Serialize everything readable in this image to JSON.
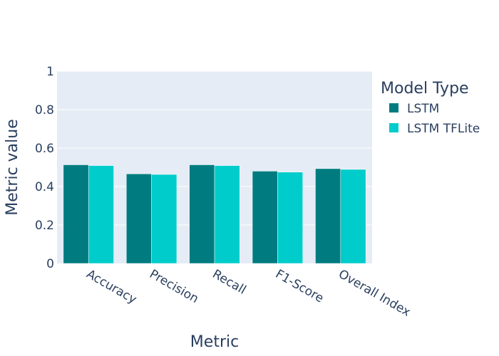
{
  "chart_data": {
    "type": "bar",
    "title": "",
    "xlabel": "Metric",
    "ylabel": "Metric value",
    "categories": [
      "Accuracy",
      "Precision",
      "Recall",
      "F1-Score",
      "Overall Index"
    ],
    "series": [
      {
        "name": "LSTM",
        "values": [
          0.513,
          0.466,
          0.513,
          0.48,
          0.493
        ],
        "color": "#007c80"
      },
      {
        "name": "LSTM TFLite",
        "values": [
          0.509,
          0.463,
          0.509,
          0.475,
          0.489
        ],
        "color": "#00cccc"
      }
    ],
    "ylim": [
      0,
      1
    ],
    "yticks": [
      0,
      0.2,
      0.4,
      0.6,
      0.8,
      1
    ],
    "ytick_labels": [
      "0",
      "0.2",
      "0.4",
      "0.6",
      "0.8",
      "1"
    ],
    "grid": true,
    "legend": {
      "title": "Model Type",
      "placement": "right"
    },
    "colors": {
      "plot_background": "#e5ecf6",
      "gridline": "#ffffff",
      "text": "#2a3f5f"
    }
  }
}
